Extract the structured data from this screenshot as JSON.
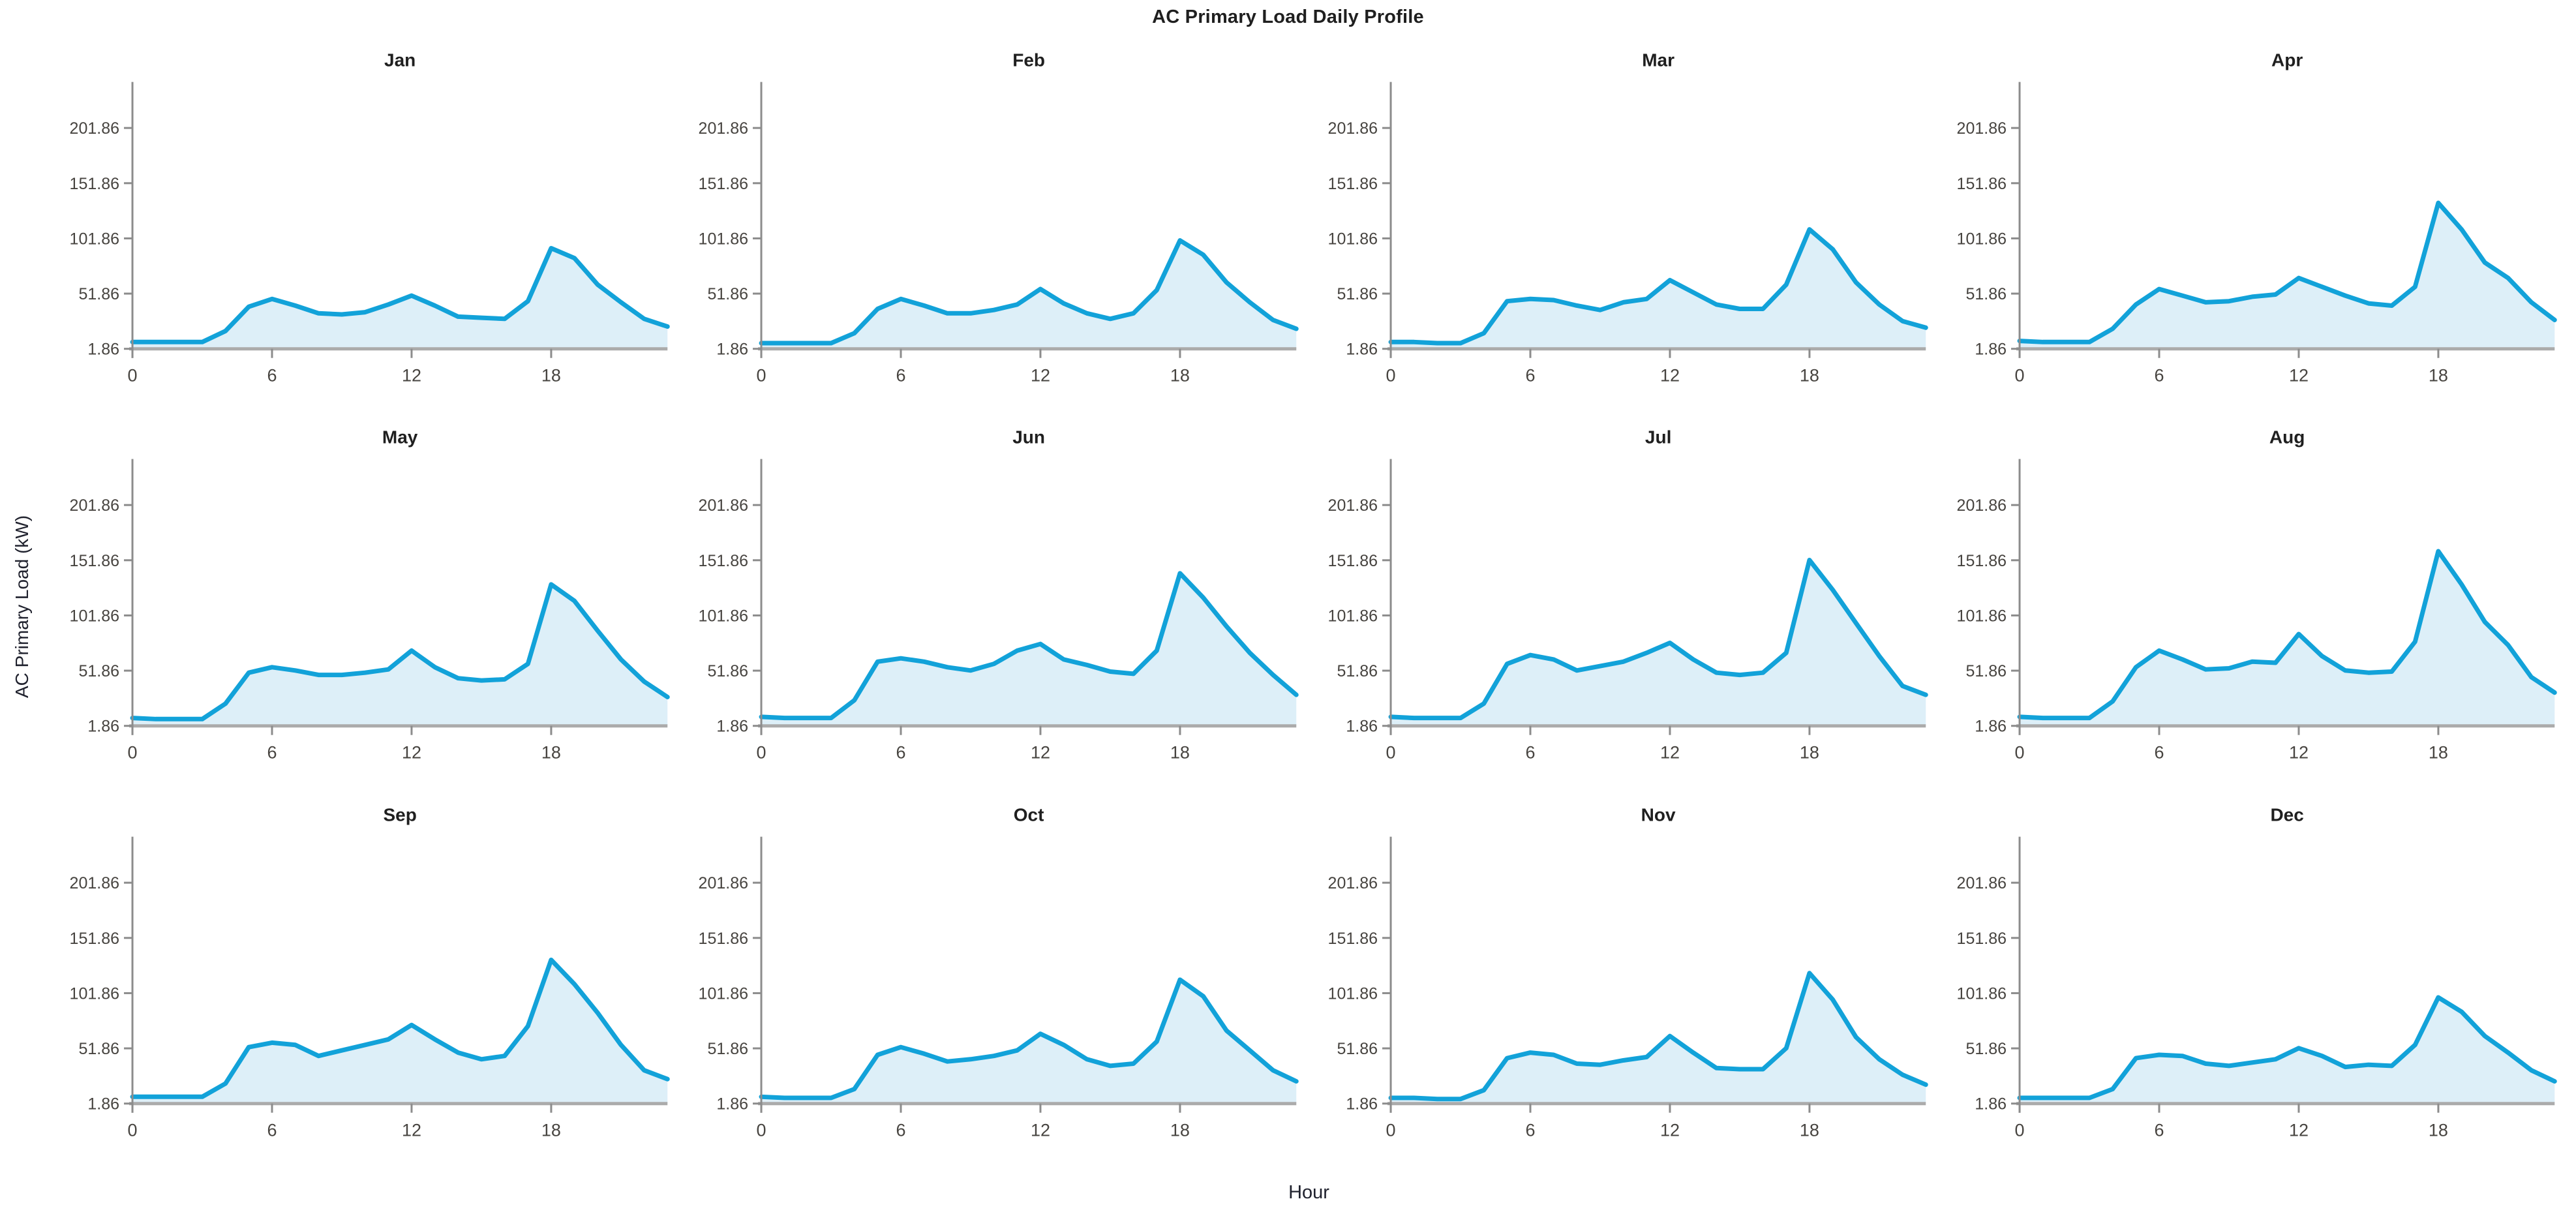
{
  "page": {
    "title": "AC Primary Load Daily Profile",
    "x_axis_label": "Hour",
    "y_axis_label": "AC Primary Load (kW)"
  },
  "colors": {
    "line": "#12a2d9",
    "fill": "#ddeff8",
    "spine": "#8c8c8c",
    "baseline": "#ababab",
    "tick_text": "#474440",
    "title_text": "#1f1f1f"
  },
  "chart_data": {
    "type": "area",
    "title": "AC Primary Load Daily Profile",
    "xlabel": "Hour",
    "ylabel": "AC Primary Load (kW)",
    "grid": false,
    "legend": "none",
    "layout": "4x3 small multiples, one subplot per month",
    "x": [
      0,
      1,
      2,
      3,
      4,
      5,
      6,
      7,
      8,
      9,
      10,
      11,
      12,
      13,
      14,
      15,
      16,
      17,
      18,
      19,
      20,
      21,
      22,
      23
    ],
    "x_ticks": [
      0,
      6,
      12,
      18
    ],
    "x_tick_labels": [
      "0",
      "6",
      "12",
      "18"
    ],
    "xlim": [
      0,
      23
    ],
    "y_ticks": [
      1.86,
      51.86,
      101.86,
      151.86,
      201.86
    ],
    "y_tick_labels": [
      "201.86",
      "151.86",
      "101.86",
      "51.86",
      "1.86"
    ],
    "ylim": [
      1.86,
      240
    ],
    "subplots": [
      {
        "name": "Jan",
        "values": [
          8,
          8,
          8,
          8,
          18,
          40,
          47,
          41,
          34,
          33,
          35,
          42,
          50,
          41,
          31,
          30,
          29,
          45,
          93,
          84,
          60,
          44,
          29,
          22
        ]
      },
      {
        "name": "Feb",
        "values": [
          7,
          7,
          7,
          7,
          16,
          38,
          47,
          41,
          34,
          34,
          37,
          42,
          56,
          43,
          34,
          29,
          34,
          55,
          100,
          87,
          62,
          44,
          28,
          20
        ]
      },
      {
        "name": "Mar",
        "values": [
          8,
          8,
          7,
          7,
          16,
          45,
          47,
          46,
          41,
          37,
          44,
          47,
          64,
          53,
          42,
          38,
          38,
          60,
          110,
          92,
          62,
          42,
          27,
          21
        ]
      },
      {
        "name": "Apr",
        "values": [
          9,
          8,
          8,
          8,
          20,
          42,
          56,
          50,
          44,
          45,
          49,
          51,
          66,
          58,
          50,
          43,
          41,
          58,
          134,
          110,
          80,
          66,
          44,
          28
        ]
      },
      {
        "name": "May",
        "values": [
          9,
          8,
          8,
          8,
          22,
          50,
          55,
          52,
          48,
          48,
          50,
          53,
          70,
          55,
          45,
          43,
          44,
          58,
          130,
          115,
          88,
          62,
          42,
          28
        ]
      },
      {
        "name": "Jun",
        "values": [
          10,
          9,
          9,
          9,
          25,
          60,
          63,
          60,
          55,
          52,
          58,
          70,
          76,
          62,
          57,
          51,
          49,
          70,
          140,
          118,
          92,
          68,
          48,
          30
        ]
      },
      {
        "name": "Jul",
        "values": [
          10,
          9,
          9,
          9,
          22,
          58,
          66,
          62,
          52,
          56,
          60,
          68,
          77,
          62,
          50,
          48,
          50,
          68,
          152,
          125,
          95,
          65,
          38,
          30
        ]
      },
      {
        "name": "Aug",
        "values": [
          10,
          9,
          9,
          9,
          24,
          55,
          70,
          62,
          53,
          54,
          60,
          59,
          85,
          65,
          52,
          50,
          51,
          78,
          160,
          130,
          96,
          75,
          46,
          32
        ]
      },
      {
        "name": "Sep",
        "values": [
          8,
          8,
          8,
          8,
          20,
          53,
          57,
          55,
          45,
          50,
          55,
          60,
          73,
          60,
          48,
          42,
          45,
          72,
          132,
          110,
          84,
          55,
          32,
          24
        ]
      },
      {
        "name": "Oct",
        "values": [
          8,
          7,
          7,
          7,
          15,
          46,
          53,
          47,
          40,
          42,
          45,
          50,
          65,
          55,
          42,
          36,
          38,
          58,
          114,
          99,
          68,
          50,
          32,
          22
        ]
      },
      {
        "name": "Nov",
        "values": [
          7,
          7,
          6,
          6,
          14,
          43,
          48,
          46,
          38,
          37,
          41,
          44,
          63,
          48,
          34,
          33,
          33,
          52,
          120,
          96,
          62,
          42,
          28,
          19
        ]
      },
      {
        "name": "Dec",
        "values": [
          7,
          7,
          7,
          7,
          15,
          43,
          46,
          45,
          38,
          36,
          39,
          42,
          52,
          45,
          35,
          37,
          36,
          55,
          98,
          85,
          63,
          48,
          32,
          22
        ]
      }
    ]
  }
}
